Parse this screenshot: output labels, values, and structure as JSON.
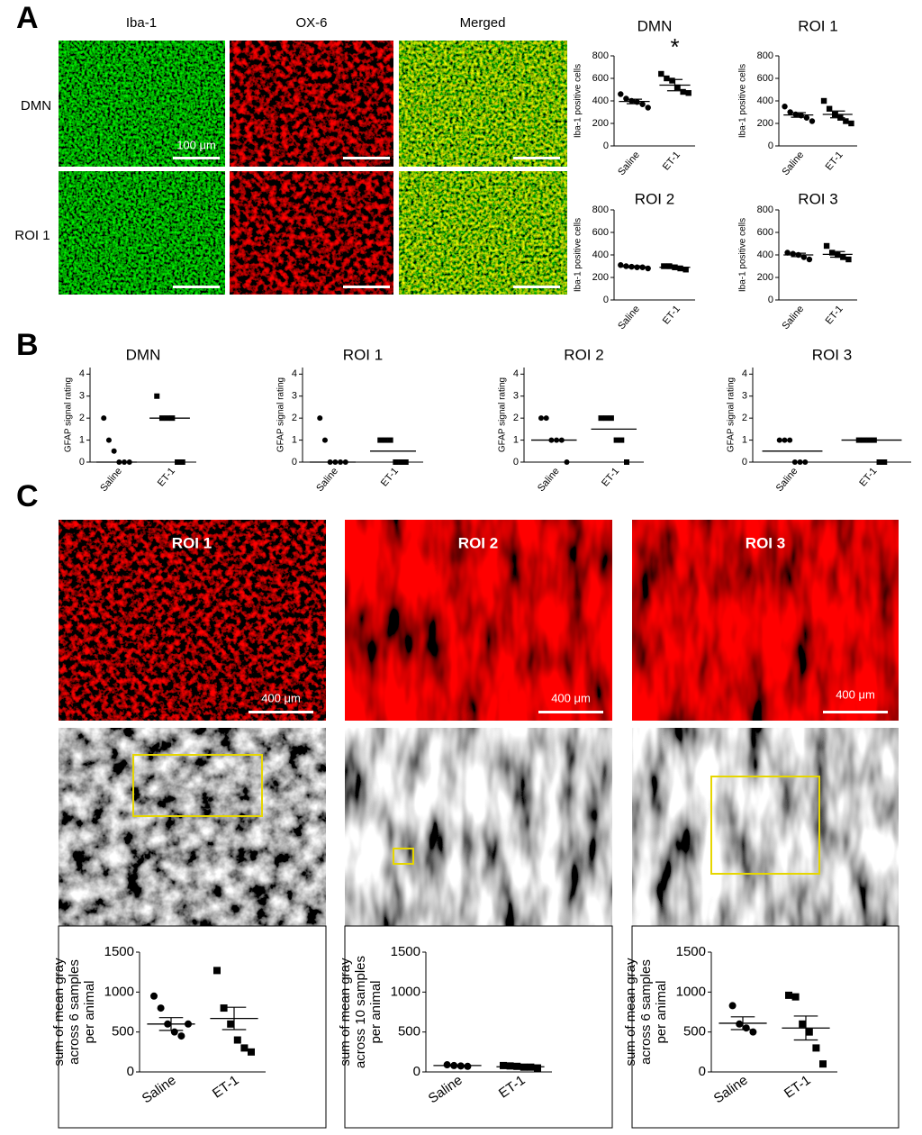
{
  "panels": {
    "A": {
      "label": "A",
      "columns": [
        "Iba-1",
        "OX-6",
        "Merged"
      ],
      "rows": [
        "DMN",
        "ROI 1"
      ],
      "scale_bar": "100 μm",
      "charts": [
        {
          "type": "dotplot",
          "title": "DMN",
          "ylabel": "Iba-1 positive cells",
          "categories": [
            "Saline",
            "ET-1"
          ],
          "ylim": [
            0,
            800
          ],
          "yticks": [
            0,
            200,
            400,
            600,
            800
          ],
          "annotation": "*",
          "groups": [
            {
              "marker": "circle",
              "values": [
                460,
                420,
                400,
                390,
                370,
                340
              ],
              "mean": 395,
              "sem": 20
            },
            {
              "marker": "square",
              "values": [
                640,
                600,
                580,
                520,
                480,
                470
              ],
              "mean": 540,
              "sem": 50
            }
          ]
        },
        {
          "type": "dotplot",
          "title": "ROI 1",
          "ylabel": "Iba-1 positive cells",
          "categories": [
            "Saline",
            "ET-1"
          ],
          "ylim": [
            0,
            800
          ],
          "yticks": [
            0,
            200,
            400,
            600,
            800
          ],
          "groups": [
            {
              "marker": "circle",
              "values": [
                350,
                300,
                280,
                270,
                250,
                220
              ],
              "mean": 275,
              "sem": 20
            },
            {
              "marker": "square",
              "values": [
                400,
                330,
                280,
                250,
                220,
                200
              ],
              "mean": 280,
              "sem": 30
            }
          ]
        },
        {
          "type": "dotplot",
          "title": "ROI 2",
          "ylabel": "Iba-1 positive cells",
          "categories": [
            "Saline",
            "ET-1"
          ],
          "ylim": [
            0,
            800
          ],
          "yticks": [
            0,
            200,
            400,
            600,
            800
          ],
          "groups": [
            {
              "marker": "circle",
              "values": [
                310,
                300,
                295,
                290,
                290,
                280
              ],
              "mean": 295,
              "sem": 8
            },
            {
              "marker": "square",
              "values": [
                300,
                300,
                290,
                280,
                270
              ],
              "mean": 290,
              "sem": 10
            }
          ]
        },
        {
          "type": "dotplot",
          "title": "ROI 3",
          "ylabel": "Iba-1 positive cells",
          "categories": [
            "Saline",
            "ET-1"
          ],
          "ylim": [
            0,
            800
          ],
          "yticks": [
            0,
            200,
            400,
            600,
            800
          ],
          "groups": [
            {
              "marker": "circle",
              "values": [
                420,
                410,
                400,
                380,
                360
              ],
              "mean": 400,
              "sem": 15
            },
            {
              "marker": "square",
              "values": [
                480,
                420,
                400,
                380,
                360
              ],
              "mean": 405,
              "sem": 25
            }
          ]
        }
      ]
    },
    "B": {
      "label": "B",
      "charts": [
        {
          "type": "dotplot",
          "title": "DMN",
          "ylabel": "GFAP signal rating",
          "categories": [
            "Saline",
            "ET-1"
          ],
          "ylim": [
            0,
            4.3
          ],
          "yticks": [
            0,
            1,
            2,
            3,
            4
          ],
          "groups": [
            {
              "marker": "circle",
              "values": [
                2,
                1,
                0.5,
                0,
                0,
                0
              ],
              "median": 0
            },
            {
              "marker": "square",
              "values": [
                3,
                2,
                2,
                2,
                0,
                0
              ],
              "median": 2
            }
          ]
        },
        {
          "type": "dotplot",
          "title": "ROI 1",
          "ylabel": "GFAP signal rating",
          "categories": [
            "Saline",
            "ET-1"
          ],
          "ylim": [
            0,
            4.3
          ],
          "yticks": [
            0,
            1,
            2,
            3,
            4
          ],
          "groups": [
            {
              "marker": "circle",
              "values": [
                2,
                1,
                0,
                0,
                0,
                0
              ],
              "median": 0
            },
            {
              "marker": "square",
              "values": [
                1,
                1,
                1,
                0,
                0,
                0
              ],
              "median": 0.5
            }
          ]
        },
        {
          "type": "dotplot",
          "title": "ROI 2",
          "ylabel": "GFAP signal rating",
          "categories": [
            "Saline",
            "ET-1"
          ],
          "ylim": [
            0,
            4.3
          ],
          "yticks": [
            0,
            1,
            2,
            3,
            4
          ],
          "groups": [
            {
              "marker": "circle",
              "values": [
                2,
                2,
                1,
                1,
                1,
                0
              ],
              "median": 1
            },
            {
              "marker": "square",
              "values": [
                2,
                2,
                2,
                1,
                1,
                0
              ],
              "median": 1.5
            }
          ]
        },
        {
          "type": "dotplot",
          "title": "ROI 3",
          "ylabel": "GFAP signal rating",
          "categories": [
            "Saline",
            "ET-1"
          ],
          "ylim": [
            0,
            4.3
          ],
          "yticks": [
            0,
            1,
            2,
            3,
            4
          ],
          "groups": [
            {
              "marker": "circle",
              "values": [
                1,
                1,
                1,
                0,
                0,
                0
              ],
              "median": 0.5
            },
            {
              "marker": "square",
              "values": [
                1,
                1,
                1,
                1,
                0,
                0
              ],
              "median": 1
            }
          ]
        }
      ]
    },
    "C": {
      "label": "C",
      "images": [
        "ROI 1",
        "ROI 2",
        "ROI 3"
      ],
      "scale_bar": "400 μm",
      "charts": [
        {
          "type": "dotplot",
          "ylabel": [
            "sum of mean gray",
            "across 6 samples",
            "per animal"
          ],
          "categories": [
            "Saline",
            "ET-1"
          ],
          "ylim": [
            0,
            1500
          ],
          "yticks": [
            0,
            500,
            1000,
            1500
          ],
          "groups": [
            {
              "marker": "circle",
              "values": [
                950,
                800,
                600,
                500,
                450,
                600
              ],
              "mean": 600,
              "sem": 80
            },
            {
              "marker": "square",
              "values": [
                1270,
                800,
                600,
                400,
                300,
                250
              ],
              "mean": 670,
              "sem": 140
            }
          ]
        },
        {
          "type": "dotplot",
          "ylabel": [
            "sum of mean gray",
            "across 10 samples",
            "per animal"
          ],
          "categories": [
            "Saline",
            "ET-1"
          ],
          "ylim": [
            0,
            1500
          ],
          "yticks": [
            0,
            500,
            1000,
            1500
          ],
          "groups": [
            {
              "marker": "circle",
              "values": [
                90,
                80,
                75,
                70
              ],
              "mean": 80,
              "sem": 5
            },
            {
              "marker": "square",
              "values": [
                80,
                75,
                70,
                60,
                60,
                50
              ],
              "mean": 65,
              "sem": 5
            }
          ]
        },
        {
          "type": "dotplot",
          "ylabel": [
            "sum of mean gray",
            "across 6 samples",
            "per animal"
          ],
          "categories": [
            "Saline",
            "ET-1"
          ],
          "ylim": [
            0,
            1500
          ],
          "yticks": [
            0,
            500,
            1000,
            1500
          ],
          "groups": [
            {
              "marker": "circle",
              "values": [
                830,
                600,
                550,
                500
              ],
              "mean": 610,
              "sem": 80
            },
            {
              "marker": "square",
              "values": [
                960,
                940,
                600,
                500,
                300,
                100
              ],
              "mean": 550,
              "sem": 150
            }
          ]
        }
      ]
    }
  }
}
